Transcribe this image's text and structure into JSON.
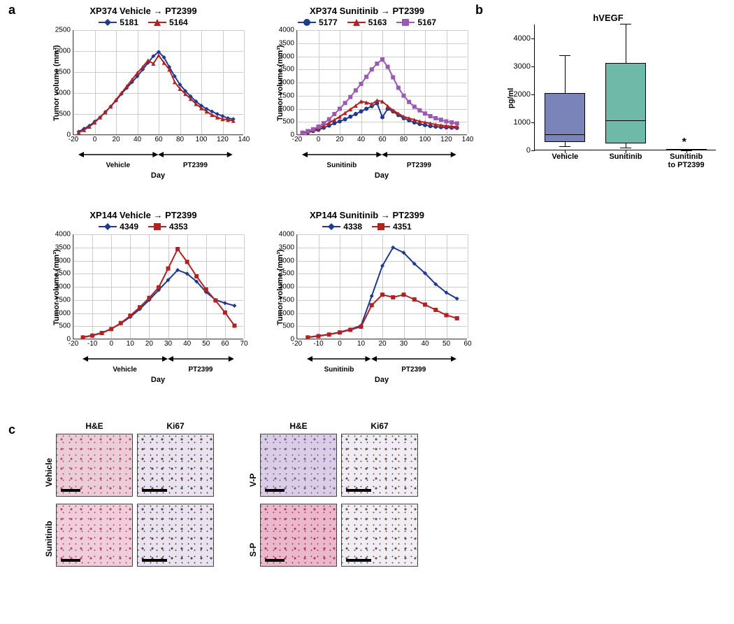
{
  "panel_labels": {
    "a": "a",
    "b": "b",
    "c": "c"
  },
  "charts": {
    "a1": {
      "title": "XP374 Vehicle → PT2399",
      "type": "line",
      "series": [
        {
          "id": "5181",
          "label": "5181",
          "color": "#1f3a93",
          "marker": "diamond",
          "x": [
            -15,
            -10,
            -5,
            0,
            5,
            10,
            15,
            20,
            25,
            30,
            35,
            40,
            45,
            50,
            55,
            60,
            65,
            70,
            75,
            80,
            85,
            90,
            95,
            100,
            105,
            110,
            115,
            120,
            125,
            130
          ],
          "y": [
            80,
            150,
            220,
            320,
            420,
            550,
            680,
            820,
            980,
            1120,
            1260,
            1400,
            1560,
            1720,
            1880,
            1980,
            1850,
            1620,
            1400,
            1200,
            1050,
            920,
            800,
            700,
            620,
            560,
            500,
            450,
            400,
            380
          ]
        },
        {
          "id": "5164",
          "label": "5164",
          "color": "#b22222",
          "marker": "triangle",
          "x": [
            -15,
            -10,
            -5,
            0,
            5,
            10,
            15,
            20,
            25,
            30,
            35,
            40,
            45,
            50,
            55,
            60,
            65,
            70,
            75,
            80,
            85,
            90,
            95,
            100,
            105,
            110,
            115,
            120,
            125,
            130
          ],
          "y": [
            60,
            120,
            200,
            300,
            420,
            540,
            680,
            840,
            1000,
            1160,
            1320,
            1480,
            1620,
            1780,
            1700,
            1900,
            1720,
            1560,
            1260,
            1100,
            980,
            860,
            740,
            640,
            560,
            480,
            420,
            380,
            360,
            340
          ]
        }
      ],
      "xlim": [
        -20,
        140
      ],
      "xtick_start": -20,
      "xtick_step": 20,
      "ylim": [
        0,
        2500
      ],
      "ytick_step": 500,
      "y_label": "Tumor volume (mm³)",
      "x_label": "Day",
      "phases": [
        {
          "label": "Vehicle",
          "from": -15,
          "to": 60
        },
        {
          "label": "PT2399",
          "from": 60,
          "to": 130
        }
      ],
      "grid_color": "#cccccc"
    },
    "a2": {
      "title": "XP374 Sunitinib → PT2399",
      "type": "line",
      "series": [
        {
          "id": "5177",
          "label": "5177",
          "color": "#1f3a93",
          "marker": "circle",
          "x": [
            -15,
            -10,
            -5,
            0,
            5,
            10,
            15,
            20,
            25,
            30,
            35,
            40,
            45,
            50,
            55,
            60,
            65,
            70,
            75,
            80,
            85,
            90,
            95,
            100,
            105,
            110,
            115,
            120,
            125,
            130
          ],
          "y": [
            60,
            100,
            150,
            200,
            280,
            360,
            450,
            520,
            600,
            700,
            800,
            900,
            1000,
            1100,
            1210,
            680,
            1000,
            900,
            760,
            640,
            560,
            480,
            420,
            380,
            340,
            320,
            300,
            290,
            280,
            270
          ]
        },
        {
          "id": "5163",
          "label": "5163",
          "color": "#b22222",
          "marker": "triangle",
          "x": [
            -15,
            -10,
            -5,
            0,
            5,
            10,
            15,
            20,
            25,
            30,
            35,
            40,
            45,
            50,
            55,
            60,
            65,
            70,
            75,
            80,
            85,
            90,
            95,
            100,
            105,
            110,
            115,
            120,
            125,
            130
          ],
          "y": [
            80,
            130,
            190,
            260,
            360,
            460,
            580,
            700,
            840,
            980,
            1120,
            1280,
            1240,
            1180,
            1320,
            1280,
            1100,
            940,
            820,
            700,
            640,
            580,
            520,
            480,
            440,
            400,
            370,
            350,
            330,
            310
          ]
        },
        {
          "id": "5167",
          "label": "5167",
          "color": "#9b59b6",
          "marker": "square",
          "x": [
            -15,
            -10,
            -5,
            0,
            5,
            10,
            15,
            20,
            25,
            30,
            35,
            40,
            45,
            50,
            55,
            60,
            65,
            70,
            75,
            80,
            85,
            90,
            95,
            100,
            105,
            110,
            115,
            120,
            125,
            130
          ],
          "y": [
            90,
            150,
            220,
            320,
            450,
            600,
            800,
            1000,
            1220,
            1450,
            1700,
            1950,
            2220,
            2500,
            2720,
            2880,
            2600,
            2200,
            1800,
            1500,
            1260,
            1080,
            940,
            820,
            720,
            640,
            580,
            520,
            480,
            440
          ]
        }
      ],
      "xlim": [
        -20,
        140
      ],
      "xtick_start": -20,
      "xtick_step": 20,
      "ylim": [
        0,
        4000
      ],
      "ytick_step": 500,
      "y_label": "Tumor volume (mm³)",
      "x_label": "Day",
      "phases": [
        {
          "label": "Sunitinib",
          "from": -15,
          "to": 60
        },
        {
          "label": "PT2399",
          "from": 60,
          "to": 130
        }
      ],
      "grid_color": "#cccccc"
    },
    "a3": {
      "title": "XP144 Vehicle → PT2399",
      "type": "line",
      "series": [
        {
          "id": "4349",
          "label": "4349",
          "color": "#1f3a93",
          "marker": "diamond",
          "x": [
            -15,
            -10,
            -5,
            0,
            5,
            10,
            15,
            20,
            25,
            30,
            35,
            40,
            45,
            50,
            55,
            60,
            65
          ],
          "y": [
            80,
            150,
            250,
            400,
            600,
            850,
            1150,
            1500,
            1880,
            2260,
            2640,
            2500,
            2200,
            1800,
            1500,
            1380,
            1280
          ]
        },
        {
          "id": "4353",
          "label": "4353",
          "color": "#b22222",
          "marker": "square",
          "x": [
            -15,
            -10,
            -5,
            0,
            5,
            10,
            15,
            20,
            25,
            30,
            35,
            40,
            45,
            50,
            55,
            60,
            65
          ],
          "y": [
            70,
            140,
            240,
            390,
            620,
            900,
            1220,
            1580,
            1980,
            2700,
            3440,
            2950,
            2400,
            1900,
            1480,
            1020,
            520
          ]
        }
      ],
      "xlim": [
        -20,
        70
      ],
      "xtick_start": -20,
      "xtick_step": 10,
      "ylim": [
        0,
        4000
      ],
      "ytick_step": 500,
      "y_label": "Tumor volume (mm³)",
      "x_label": "Day",
      "phases": [
        {
          "label": "Vehicle",
          "from": -15,
          "to": 30
        },
        {
          "label": "PT2399",
          "from": 30,
          "to": 65
        }
      ],
      "grid_color": "#cccccc"
    },
    "a4": {
      "title": "XP144 Sunitinib → PT2399",
      "type": "line",
      "series": [
        {
          "id": "4338",
          "label": "4338",
          "color": "#1f3a93",
          "marker": "diamond",
          "x": [
            -15,
            -10,
            -5,
            0,
            5,
            10,
            15,
            20,
            25,
            30,
            35,
            40,
            45,
            50,
            55
          ],
          "y": [
            80,
            130,
            190,
            270,
            380,
            520,
            1650,
            2800,
            3500,
            3300,
            2880,
            2520,
            2100,
            1780,
            1550
          ]
        },
        {
          "id": "4351",
          "label": "4351",
          "color": "#b22222",
          "marker": "square",
          "x": [
            -15,
            -10,
            -5,
            0,
            5,
            10,
            15,
            20,
            25,
            30,
            35,
            40,
            45,
            50,
            55
          ],
          "y": [
            70,
            120,
            180,
            260,
            360,
            480,
            1300,
            1700,
            1600,
            1700,
            1520,
            1320,
            1120,
            920,
            800
          ]
        }
      ],
      "xlim": [
        -20,
        60
      ],
      "xtick_start": -20,
      "xtick_step": 10,
      "ylim": [
        0,
        4000
      ],
      "ytick_step": 500,
      "y_label": "Tumor volume (mm³)",
      "x_label": "Day",
      "phases": [
        {
          "label": "Sunitinib",
          "from": -15,
          "to": 15
        },
        {
          "label": "PT2399",
          "from": 15,
          "to": 55
        }
      ],
      "grid_color": "#cccccc"
    }
  },
  "boxplot": {
    "title": "hVEGF",
    "y_label": "pg/ml",
    "ylim": [
      0,
      4500
    ],
    "ytick_step": 1000,
    "categories": [
      "Vehicle",
      "Sunitinib",
      "Sunitinib\nto PT2399"
    ],
    "boxes": [
      {
        "q1": 300,
        "median": 580,
        "q3": 2060,
        "whisker_low": 150,
        "whisker_high": 3400,
        "fill": "#7a84b8"
      },
      {
        "q1": 260,
        "median": 1080,
        "q3": 3120,
        "whisker_low": 100,
        "whisker_high": 4520,
        "fill": "#6fb9a9"
      },
      {
        "q1": 10,
        "median": 20,
        "q3": 40,
        "whisker_low": 5,
        "whisker_high": 60,
        "fill": "#dddddd",
        "annotation": "*"
      }
    ],
    "axis_color": "#000000"
  },
  "micrographs": {
    "col_labels_left": [
      "H&E",
      "Ki67"
    ],
    "col_labels_right": [
      "H&E",
      "Ki67"
    ],
    "row_labels_left": [
      "Vehicle",
      "Sunitinib"
    ],
    "row_labels_right": [
      "V-P",
      "S-P"
    ],
    "cells": {
      "left": [
        [
          {
            "name": "vehicle-he",
            "bg": "#e8c8d2",
            "spots": "#b04060",
            "scale_w": 28
          },
          {
            "name": "vehicle-ki67",
            "bg": "#e6dff0",
            "spots": "#4a3520",
            "scale_w": 36
          }
        ],
        [
          {
            "name": "sunitinib-he",
            "bg": "#efc8d6",
            "spots": "#a83858",
            "scale_w": 28
          },
          {
            "name": "sunitinib-ki67",
            "bg": "#e6dff0",
            "spots": "#4a3520",
            "scale_w": 36
          }
        ]
      ],
      "right": [
        [
          {
            "name": "vp-he",
            "bg": "#d6c8e4",
            "spots": "#7a4a90",
            "scale_w": 28
          },
          {
            "name": "vp-ki67",
            "bg": "#efeaf4",
            "spots": "#5a4028",
            "scale_w": 36
          }
        ],
        [
          {
            "name": "sp-he",
            "bg": "#e8b0c6",
            "spots": "#9c2654",
            "scale_w": 28
          },
          {
            "name": "sp-ki67",
            "bg": "#f0ecf4",
            "spots": "#5a4028",
            "scale_w": 36
          }
        ]
      ]
    }
  }
}
